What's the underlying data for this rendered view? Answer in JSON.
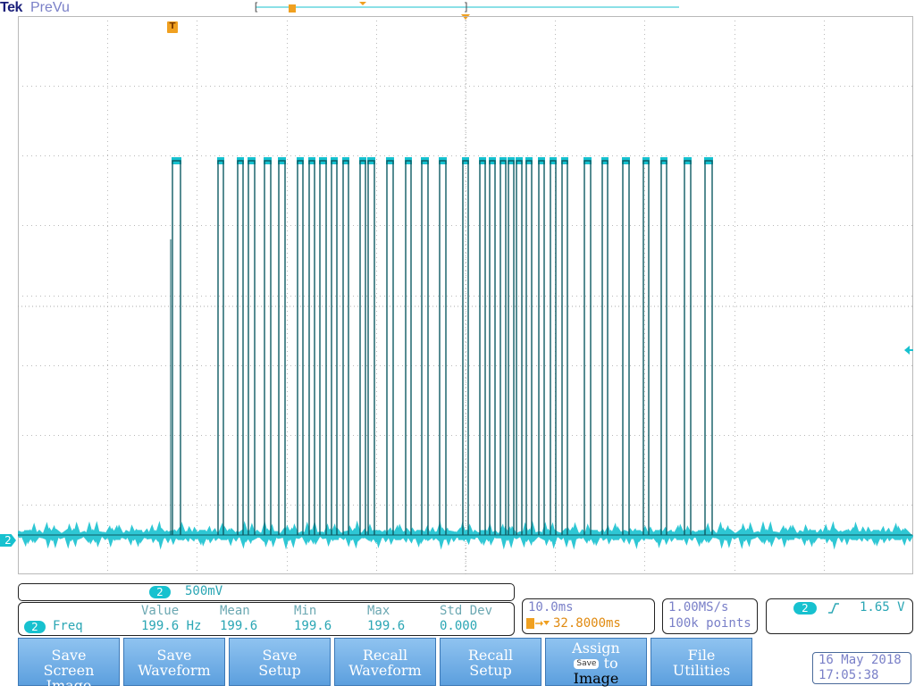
{
  "header": {
    "brand": "Tek",
    "mode": "PreVu"
  },
  "markers": {
    "trigger_position_glyph": "T",
    "channel_ground_label": "2"
  },
  "colors": {
    "trace": "#17c1cf",
    "trace_edge": "#0e5b63",
    "grid": "#b9b9b9",
    "marker_orange": "#f0a020",
    "button_fill": "#7fb6ea",
    "readout_text": "#2aa6b4"
  },
  "channel_readout": {
    "channel": "2",
    "scale": "500mV"
  },
  "measurement": {
    "channel": "2",
    "name": "Freq",
    "headers": [
      "Value",
      "Mean",
      "Min",
      "Max",
      "Std Dev"
    ],
    "values": [
      "199.6 Hz",
      "199.6",
      "199.6",
      "199.6",
      "0.000"
    ]
  },
  "horizontal": {
    "time_per_div": "10.0ms",
    "delay": "32.8000ms",
    "delay_icon": "trigger-delay-icon"
  },
  "acquisition": {
    "sample_rate": "1.00MS/s",
    "record_length": "100k points"
  },
  "trigger": {
    "channel": "2",
    "slope_icon": "rising-edge-icon",
    "level": "1.65 V"
  },
  "menu": [
    {
      "line1": "Save",
      "line2": "Screen Image"
    },
    {
      "line1": "Save",
      "line2": "Waveform"
    },
    {
      "line1": "Save",
      "line2": "Setup"
    },
    {
      "line1": "Recall",
      "line2": "Waveform"
    },
    {
      "line1": "Recall",
      "line2": "Setup"
    },
    {
      "line1": "Assign",
      "badge": "Save",
      "line2": "to",
      "line3": "Image"
    },
    {
      "line1": "File",
      "line2": "Utilities"
    }
  ],
  "datetime": {
    "date": "16 May 2018",
    "time": "17:05:38"
  }
}
